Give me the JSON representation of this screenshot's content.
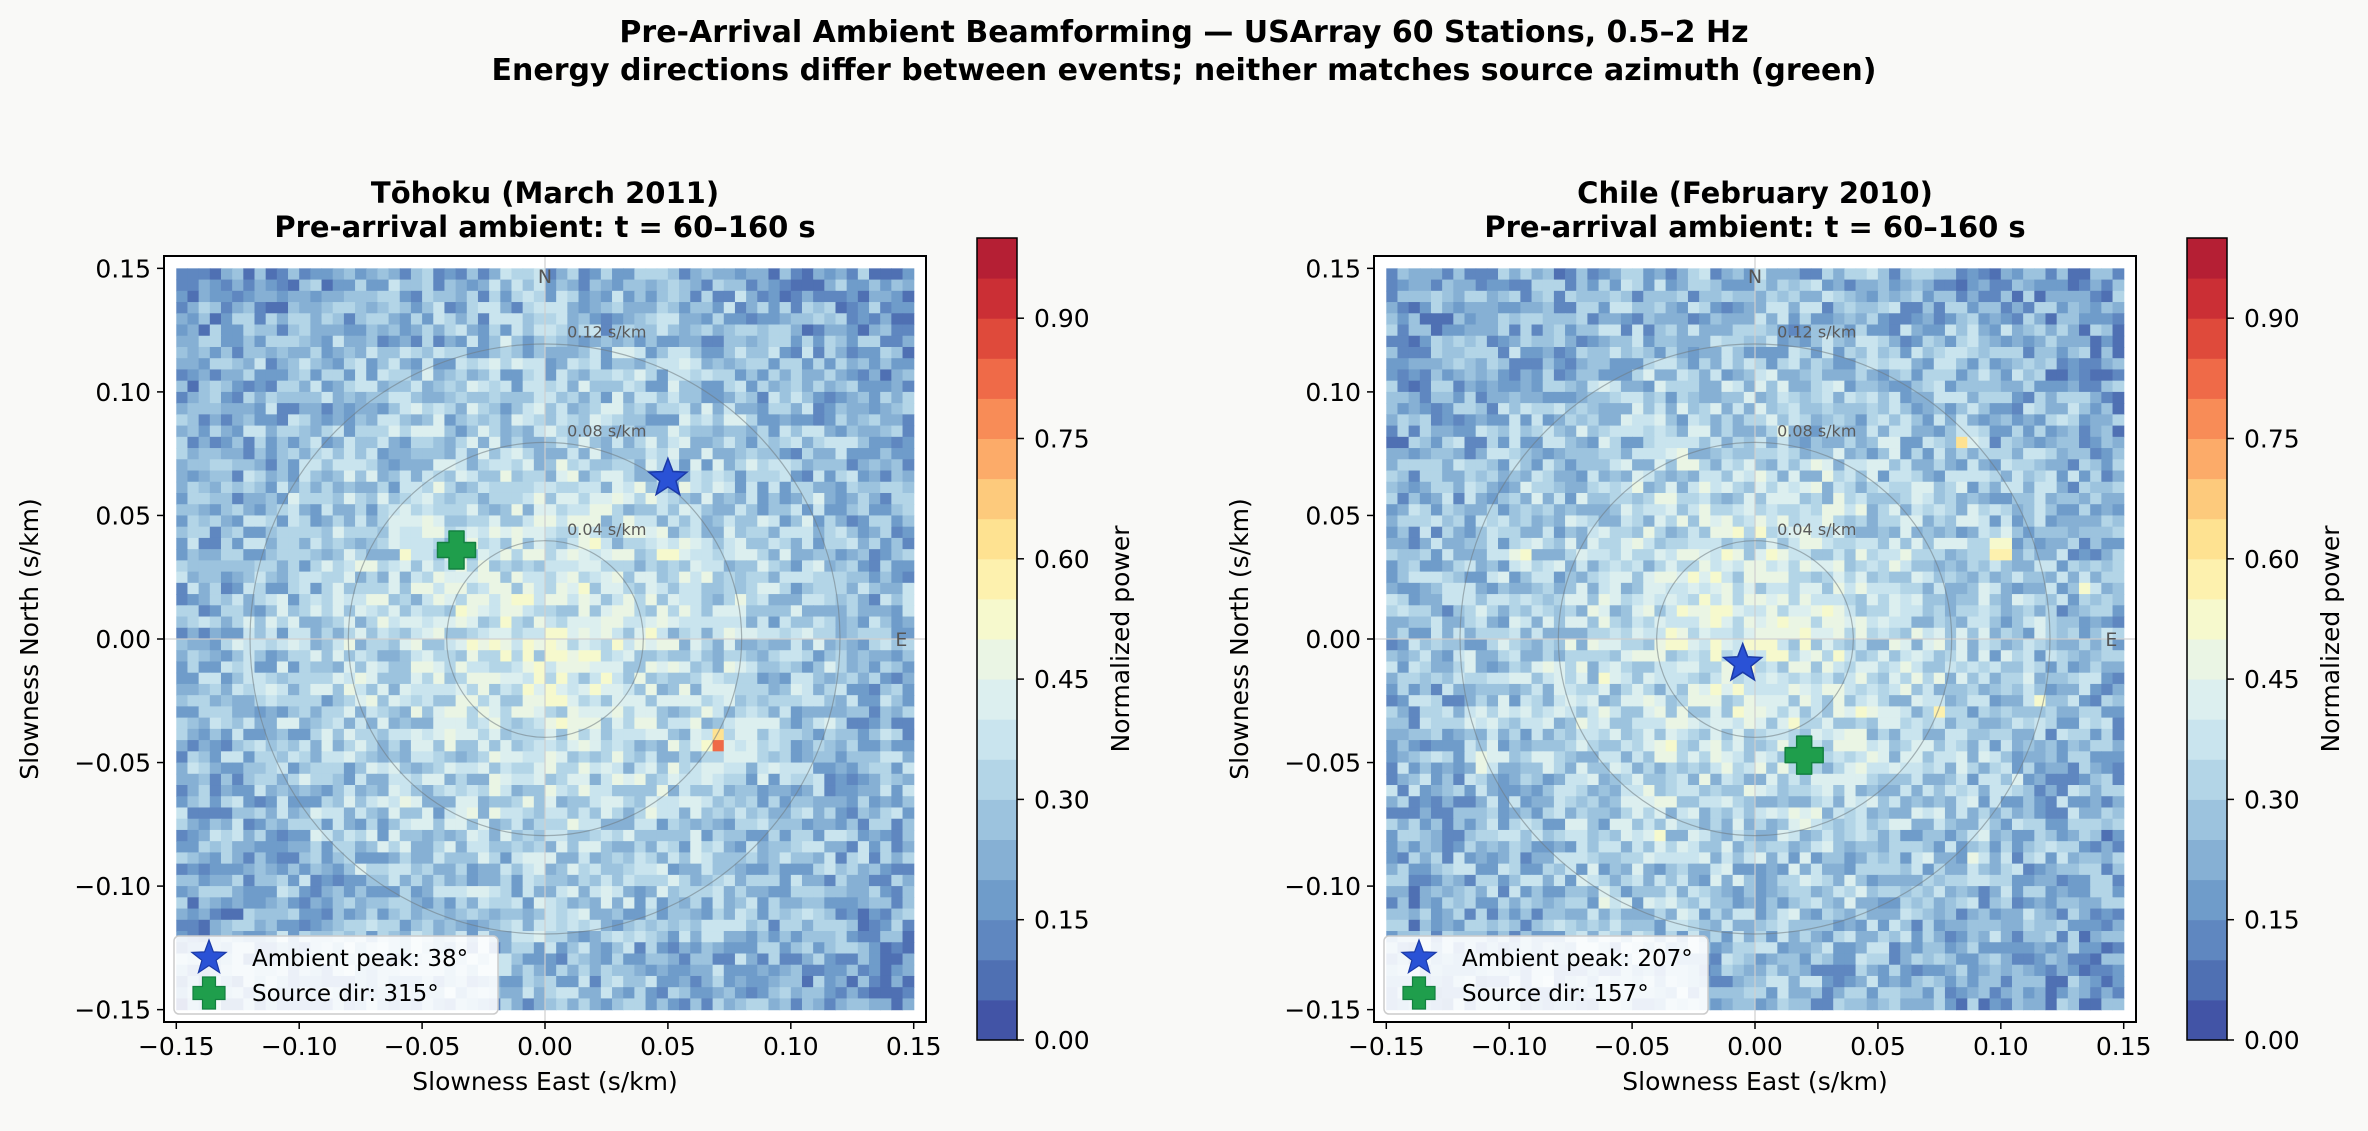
{
  "figure": {
    "suptitle_line1": "Pre-Arrival Ambient Beamforming — USArray 60 Stations, 0.5–2 Hz",
    "suptitle_line2": "Energy directions differ between events; neither matches source azimuth (green)"
  },
  "colors": {
    "background": "#f9f9f7",
    "peak_star": "#2a52d6",
    "source_cross": "#1f9e4c",
    "colormap": [
      "#4254a6",
      "#4f70b3",
      "#5f87c0",
      "#6f9cca",
      "#86b0d4",
      "#9cc3de",
      "#b3d5e7",
      "#c9e4ee",
      "#dcefef",
      "#eaf5e4",
      "#f6f9cd",
      "#fdf1ae",
      "#fee291",
      "#fdca7c",
      "#fcab69",
      "#f88c57",
      "#ef6a48",
      "#df4a3b",
      "#cb2f35",
      "#b51f34"
    ]
  },
  "chart_data": [
    {
      "type": "heatmap",
      "title_line1": "Tōhoku (March 2011)",
      "title_line2": "Pre-arrival ambient: t = 60–160 s",
      "xlabel": "Slowness East (s/km)",
      "ylabel": "Slowness North (s/km)",
      "xlim": [
        -0.155,
        0.155
      ],
      "ylim": [
        -0.155,
        0.155
      ],
      "xticks": [
        -0.15,
        -0.1,
        -0.05,
        0.0,
        0.05,
        0.1,
        0.15
      ],
      "yticks": [
        -0.15,
        -0.1,
        -0.05,
        0.0,
        0.05,
        0.1,
        0.15
      ],
      "xtick_labels": [
        "−0.15",
        "−0.10",
        "−0.05",
        "0.00",
        "0.05",
        "0.10",
        "0.15"
      ],
      "ytick_labels": [
        "−0.15",
        "−0.10",
        "−0.05",
        "0.00",
        "0.05",
        "0.10",
        "0.15"
      ],
      "grid": false,
      "compass": {
        "north": "N",
        "east": "E"
      },
      "rings": [
        {
          "radius": 0.04,
          "label": "0.04 s/km"
        },
        {
          "radius": 0.08,
          "label": "0.08 s/km"
        },
        {
          "radius": 0.12,
          "label": "0.12 s/km"
        }
      ],
      "ambient_peak": {
        "x": 0.05,
        "y": 0.065,
        "label": "Ambient peak: 38°"
      },
      "source_dir": {
        "x": -0.036,
        "y": 0.036,
        "label": "Source dir: 315°"
      },
      "legend_position": "lower-left",
      "noise_seed": 11,
      "hotspots": [
        {
          "x": 0.07,
          "y": -0.042,
          "v": 0.85
        },
        {
          "x": -0.036,
          "y": 0.022,
          "v": 0.56
        },
        {
          "x": 0.05,
          "y": 0.035,
          "v": 0.6
        },
        {
          "x": 0.08,
          "y": 0.014,
          "v": 0.55
        },
        {
          "x": -0.056,
          "y": 0.035,
          "v": 0.57
        },
        {
          "x": -0.055,
          "y": -0.066,
          "v": 0.5
        },
        {
          "x": 0.014,
          "y": -0.042,
          "v": 0.52
        },
        {
          "x": -0.017,
          "y": 0.012,
          "v": 0.52
        }
      ],
      "colorbar": {
        "label": "Normalized power",
        "ticks": [
          0.0,
          0.15,
          0.3,
          0.45,
          0.6,
          0.75,
          0.9
        ],
        "tick_labels": [
          "0.00",
          "0.15",
          "0.30",
          "0.45",
          "0.60",
          "0.75",
          "0.90"
        ],
        "range": [
          0.0,
          1.0
        ],
        "levels": 20
      }
    },
    {
      "type": "heatmap",
      "title_line1": "Chile (February 2010)",
      "title_line2": "Pre-arrival ambient: t = 60–160 s",
      "xlabel": "Slowness East (s/km)",
      "ylabel": "Slowness North (s/km)",
      "xlim": [
        -0.155,
        0.155
      ],
      "ylim": [
        -0.155,
        0.155
      ],
      "xticks": [
        -0.15,
        -0.1,
        -0.05,
        0.0,
        0.05,
        0.1,
        0.15
      ],
      "yticks": [
        -0.15,
        -0.1,
        -0.05,
        0.0,
        0.05,
        0.1,
        0.15
      ],
      "xtick_labels": [
        "−0.15",
        "−0.10",
        "−0.05",
        "0.00",
        "0.05",
        "0.10",
        "0.15"
      ],
      "ytick_labels": [
        "−0.15",
        "−0.10",
        "−0.05",
        "0.00",
        "0.05",
        "0.10",
        "0.15"
      ],
      "grid": false,
      "compass": {
        "north": "N",
        "east": "E"
      },
      "rings": [
        {
          "radius": 0.04,
          "label": "0.04 s/km"
        },
        {
          "radius": 0.08,
          "label": "0.08 s/km"
        },
        {
          "radius": 0.12,
          "label": "0.12 s/km"
        }
      ],
      "ambient_peak": {
        "x": -0.005,
        "y": -0.01,
        "label": "Ambient peak: 207°"
      },
      "source_dir": {
        "x": 0.02,
        "y": -0.047,
        "label": "Source dir: 157°"
      },
      "legend_position": "lower-left",
      "noise_seed": 29,
      "hotspots": [
        {
          "x": 0.0,
          "y": 0.027,
          "v": 0.64
        },
        {
          "x": 0.013,
          "y": 0.005,
          "v": 0.6
        },
        {
          "x": -0.01,
          "y": 0.01,
          "v": 0.6
        },
        {
          "x": 0.1,
          "y": 0.036,
          "v": 0.72
        },
        {
          "x": -0.035,
          "y": 0.0,
          "v": 0.62
        },
        {
          "x": -0.06,
          "y": -0.015,
          "v": 0.58
        },
        {
          "x": 0.085,
          "y": 0.08,
          "v": 0.62
        },
        {
          "x": 0.075,
          "y": -0.03,
          "v": 0.58
        },
        {
          "x": -0.035,
          "y": -0.045,
          "v": 0.6
        },
        {
          "x": -0.095,
          "y": 0.033,
          "v": 0.58
        },
        {
          "x": -0.11,
          "y": -0.05,
          "v": 0.56
        },
        {
          "x": 0.03,
          "y": 0.05,
          "v": 0.57
        },
        {
          "x": 0.045,
          "y": -0.03,
          "v": 0.57
        },
        {
          "x": -0.04,
          "y": -0.08,
          "v": 0.56
        },
        {
          "x": 0.135,
          "y": 0.02,
          "v": 0.56
        },
        {
          "x": -0.06,
          "y": -0.105,
          "v": 0.54
        },
        {
          "x": 0.09,
          "y": -0.09,
          "v": 0.53
        },
        {
          "x": 0.115,
          "y": -0.025,
          "v": 0.55
        }
      ],
      "colorbar": {
        "label": "Normalized power",
        "ticks": [
          0.0,
          0.15,
          0.3,
          0.45,
          0.6,
          0.75,
          0.9
        ],
        "tick_labels": [
          "0.00",
          "0.15",
          "0.30",
          "0.45",
          "0.60",
          "0.75",
          "0.90"
        ],
        "range": [
          0.0,
          1.0
        ],
        "levels": 20
      }
    }
  ]
}
